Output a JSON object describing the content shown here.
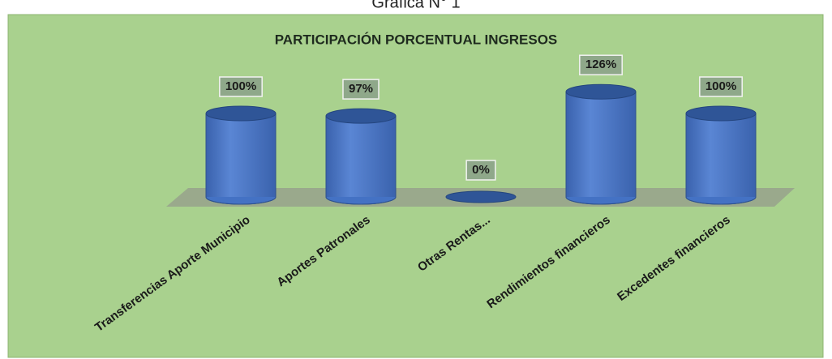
{
  "chart_data": {
    "type": "bar",
    "heading": "Gráfica N° 1",
    "title": "PARTICIPACIÓN PORCENTUAL INGRESOS",
    "categories": [
      "Transferencias Aporte Municipio",
      "Aportes Patronales",
      "Otras Rentas...",
      "Rendimientos financieros",
      "Excedentes financieros"
    ],
    "values": [
      100,
      97,
      0,
      126,
      100
    ],
    "value_labels": [
      "100%",
      "97%",
      "0%",
      "126%",
      "100%"
    ],
    "color": "#4472c4"
  }
}
